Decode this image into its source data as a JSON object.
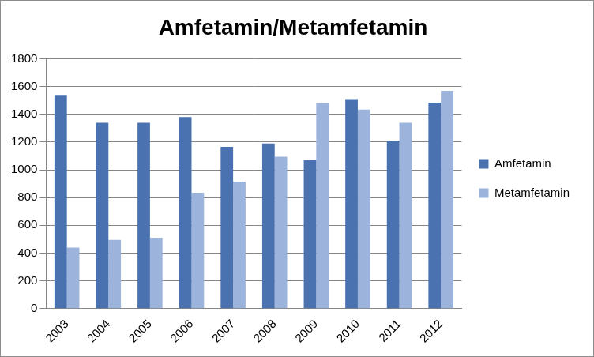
{
  "chart_data": {
    "type": "bar",
    "title": "Amfetamin/Metamfetamin",
    "categories": [
      "2003",
      "2004",
      "2005",
      "2006",
      "2007",
      "2008",
      "2009",
      "2010",
      "2011",
      "2012"
    ],
    "series": [
      {
        "name": "Amfetamin",
        "color": "#4a72b0",
        "values": [
          1540,
          1340,
          1340,
          1380,
          1165,
          1190,
          1070,
          1510,
          1210,
          1485
        ]
      },
      {
        "name": "Metamfetamin",
        "color": "#9cb3dc",
        "values": [
          440,
          495,
          510,
          835,
          915,
          1095,
          1480,
          1435,
          1340,
          1570
        ]
      }
    ],
    "ylim": [
      0,
      1800
    ],
    "yticks": [
      0,
      200,
      400,
      600,
      800,
      1000,
      1200,
      1400,
      1600,
      1800
    ],
    "grid": true,
    "legend": "right"
  }
}
